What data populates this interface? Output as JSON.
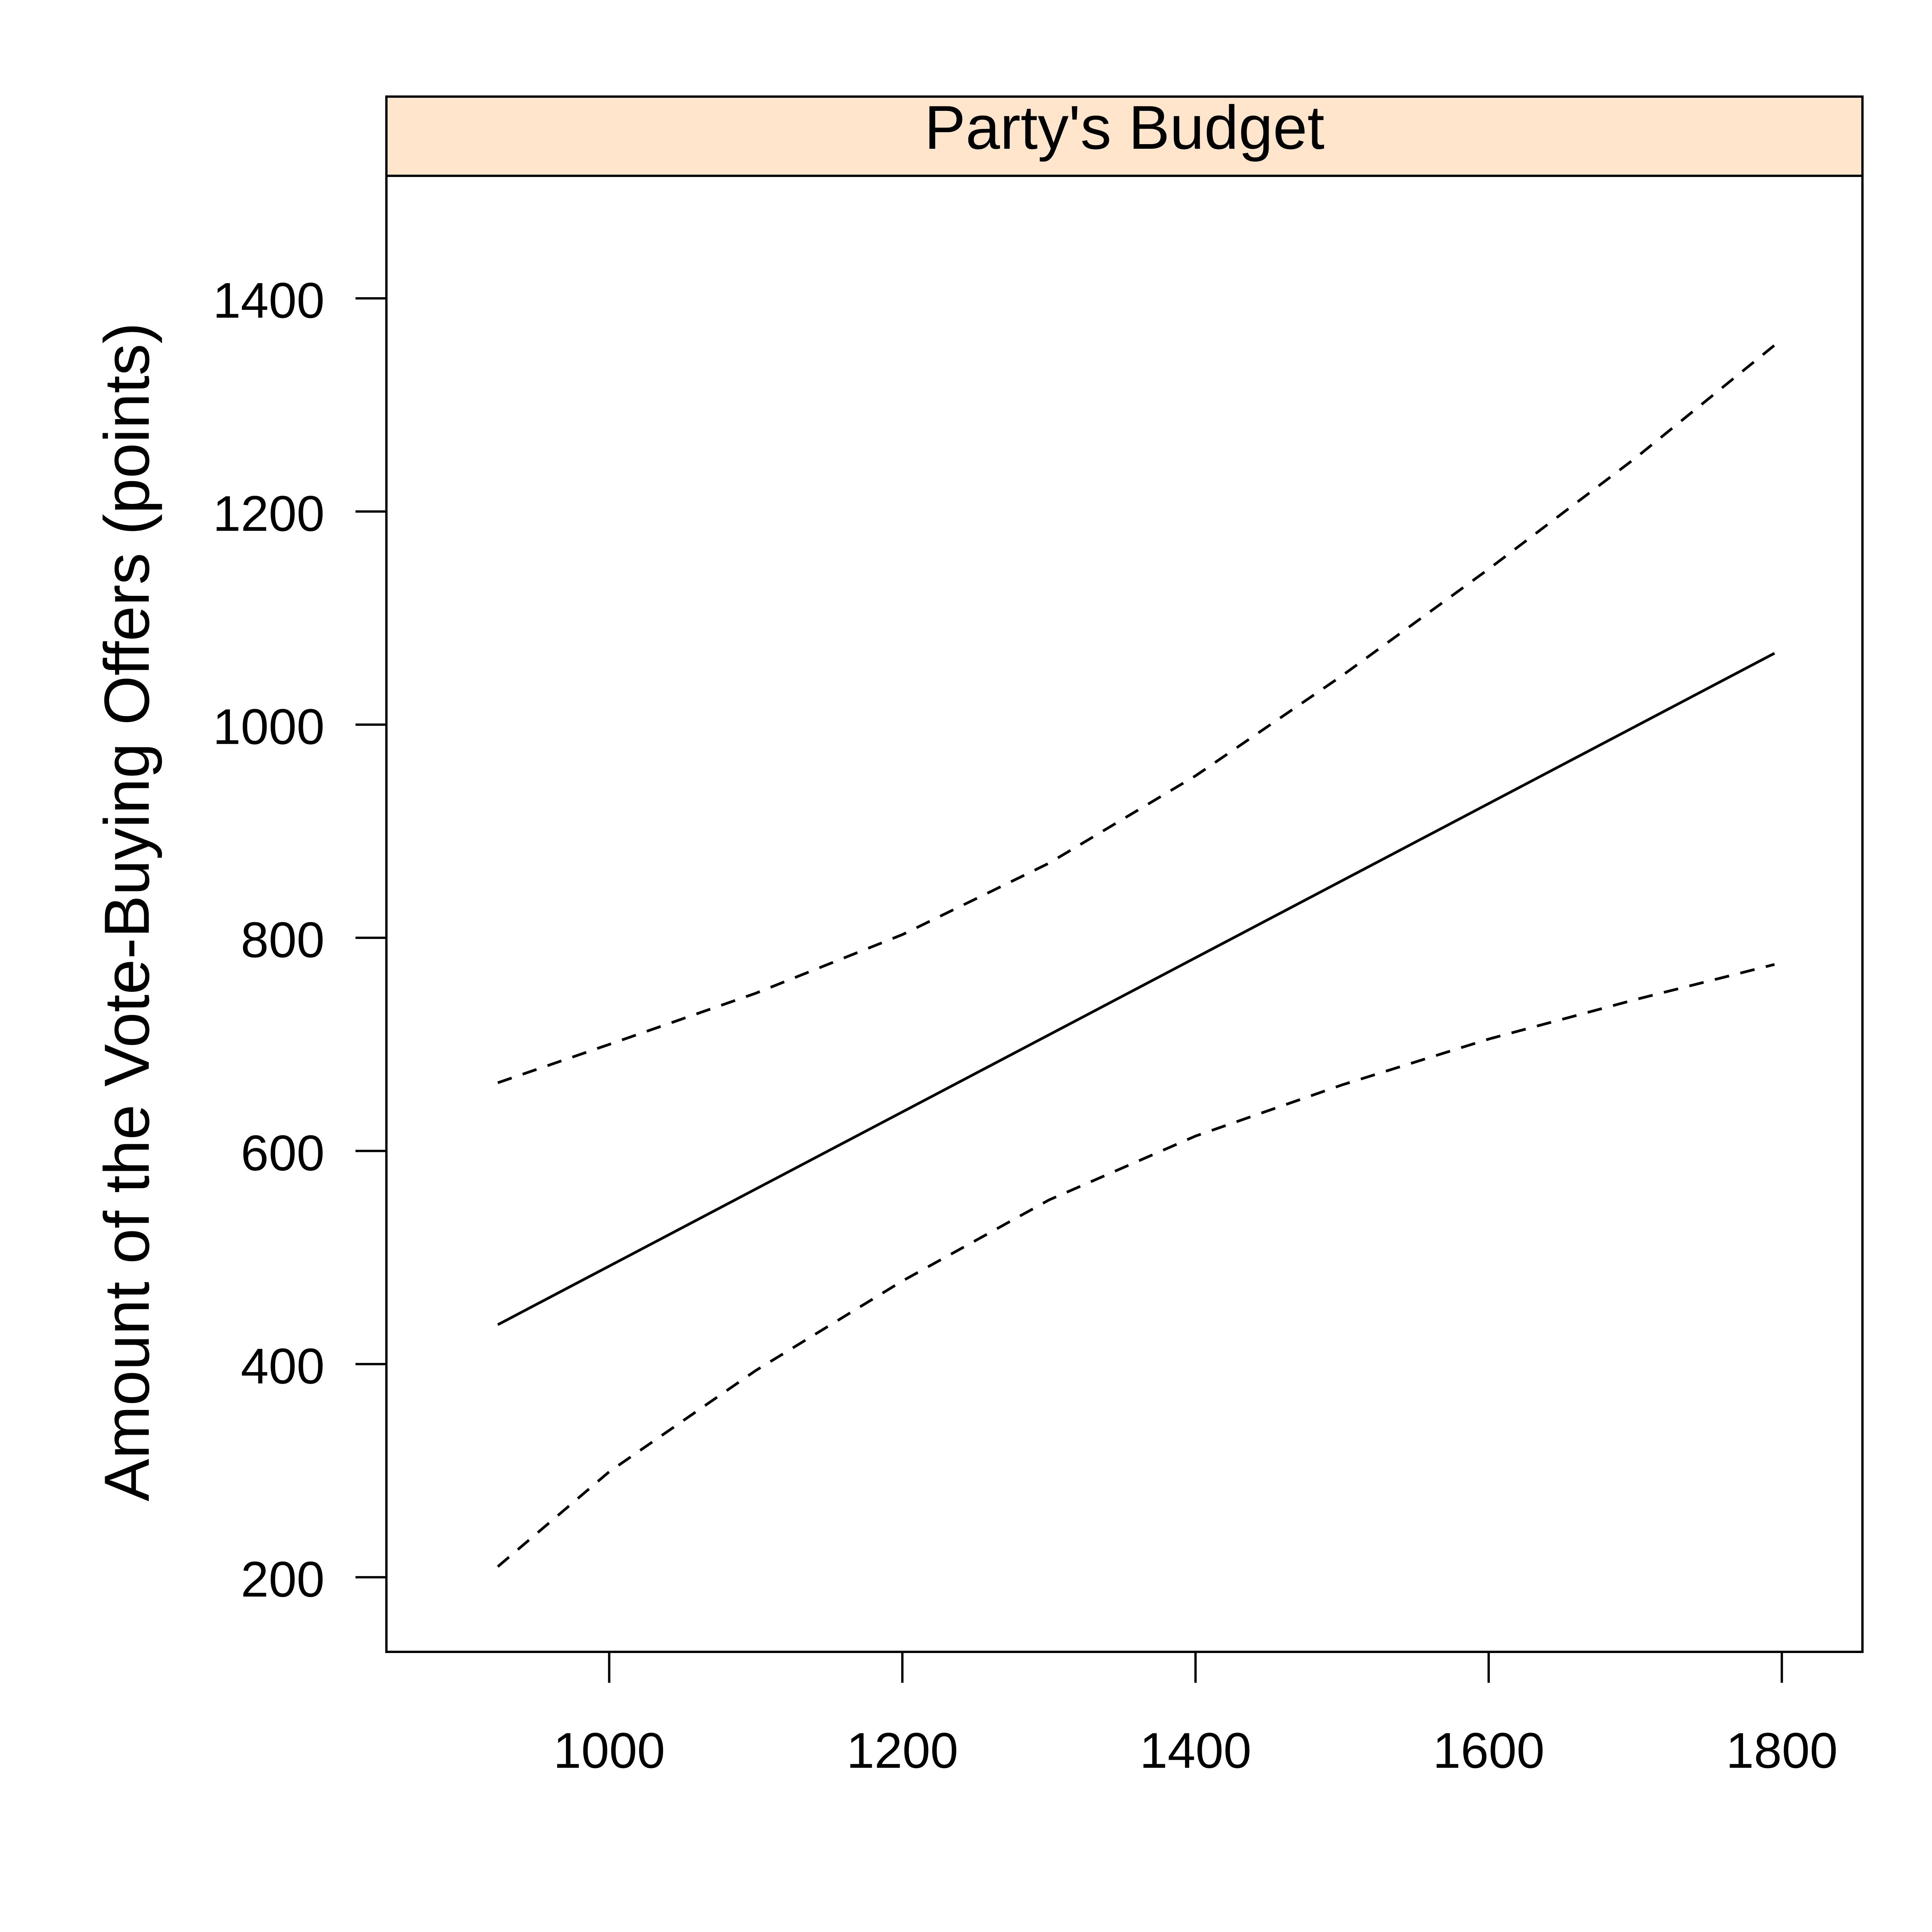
{
  "chart_data": {
    "type": "line",
    "strip_title": "Party's Budget",
    "xlabel": "",
    "ylabel": "Amount of the Vote-Buying Offers (points)",
    "xlim": [
      848,
      1855
    ],
    "ylim": [
      130,
      1515
    ],
    "xticks": [
      1000,
      1200,
      1400,
      1600,
      1800
    ],
    "yticks": [
      200,
      400,
      600,
      800,
      1000,
      1200,
      1400
    ],
    "grid": false,
    "strip_color": "#FFE5CC",
    "series": [
      {
        "role": "fit",
        "line_style": "solid",
        "x": [
          924,
          1795
        ],
        "y": [
          437,
          1067
        ]
      },
      {
        "role": "upper",
        "line_style": "dashed",
        "x": [
          924,
          1000,
          1100,
          1200,
          1300,
          1400,
          1500,
          1600,
          1700,
          1795
        ],
        "y": [
          664,
          700,
          748,
          803,
          870,
          952,
          1046,
          1146,
          1250,
          1356
        ]
      },
      {
        "role": "lower",
        "line_style": "dashed",
        "x": [
          924,
          1000,
          1100,
          1200,
          1300,
          1400,
          1500,
          1600,
          1700,
          1795
        ],
        "y": [
          210,
          299,
          394,
          478,
          554,
          614,
          662,
          705,
          742,
          775
        ]
      }
    ]
  }
}
